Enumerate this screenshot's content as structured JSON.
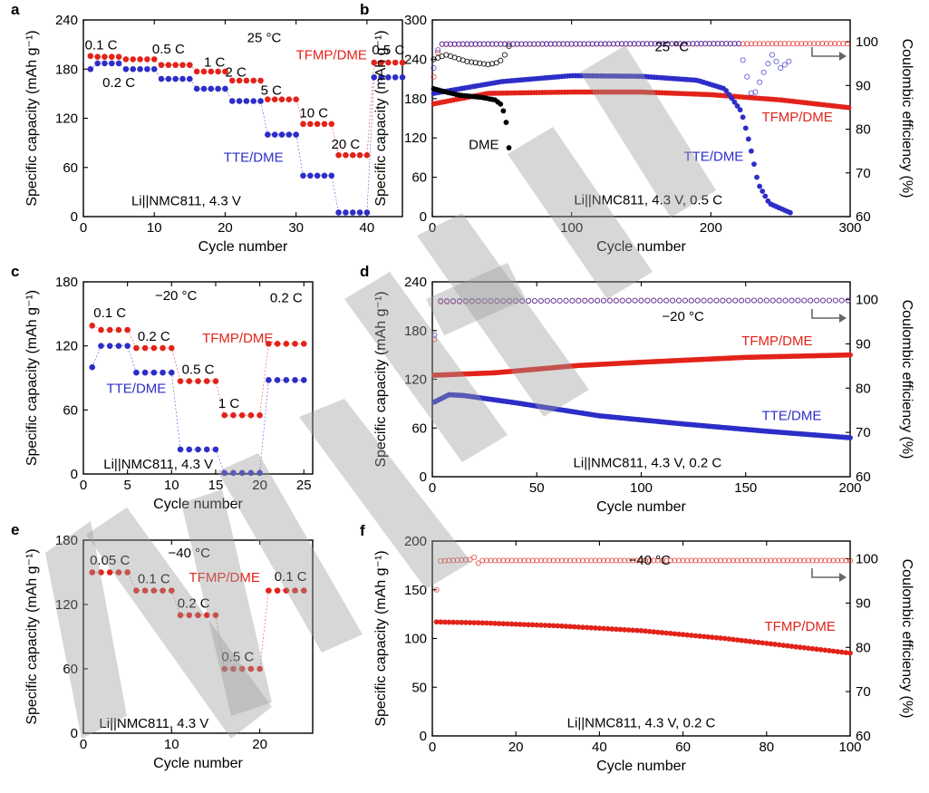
{
  "panels": [
    {
      "id": "a",
      "label": "a",
      "type": "rate",
      "xlabel": "Cycle number",
      "ylabel": "Specific capacity (mAh g⁻¹)",
      "xlim": [
        0,
        45
      ],
      "xticks": [
        0,
        10,
        20,
        30,
        40
      ],
      "ylim": [
        0,
        240
      ],
      "yticks": [
        0,
        60,
        120,
        180,
        240
      ],
      "series": [
        {
          "name": "TFMP/DME",
          "color": "#e2231a",
          "rates": [
            [
              1,
              5,
              195
            ],
            [
              6,
              10,
              192
            ],
            [
              11,
              15,
              185
            ],
            [
              16,
              20,
              177
            ],
            [
              21,
              25,
              166
            ],
            [
              26,
              30,
              143
            ],
            [
              31,
              35,
              113
            ],
            [
              36,
              40,
              75
            ],
            [
              41,
              45,
              188
            ]
          ],
          "first": 196
        },
        {
          "name": "TTE/DME",
          "color": "#2d2dc8",
          "rates": [
            [
              1,
              5,
              187
            ],
            [
              6,
              10,
              180
            ],
            [
              11,
              15,
              168
            ],
            [
              16,
              20,
              156
            ],
            [
              21,
              25,
              141
            ],
            [
              26,
              30,
              100
            ],
            [
              31,
              35,
              50
            ],
            [
              36,
              40,
              5
            ],
            [
              41,
              45,
              170
            ]
          ],
          "first": 180
        }
      ],
      "labels": [
        {
          "text": "0.1 C",
          "x": 2.5,
          "y": 204
        },
        {
          "text": "0.5 C",
          "x": 12,
          "y": 199
        },
        {
          "text": "25 °C",
          "x": 25.5,
          "y": 213,
          "color": "#000000"
        },
        {
          "text": "TFMP/DME",
          "x": 35,
          "y": 192,
          "color": "#e2231a"
        },
        {
          "text": "0.2 C",
          "x": 5,
          "y": 158
        },
        {
          "text": "1 C",
          "x": 18.5,
          "y": 183
        },
        {
          "text": "2 C",
          "x": 21.5,
          "y": 171
        },
        {
          "text": "5 C",
          "x": 26.5,
          "y": 149
        },
        {
          "text": "10 C",
          "x": 32.5,
          "y": 121
        },
        {
          "text": "20 C",
          "x": 37,
          "y": 83
        },
        {
          "text": "0.5 C",
          "x": 43,
          "y": 198
        },
        {
          "text": "TTE/DME",
          "x": 24,
          "y": 67,
          "color": "#2d2dc8"
        },
        {
          "text": "Li||NMC811, 4.3 V",
          "x": 14.5,
          "y": 14,
          "color": "#000000"
        }
      ]
    },
    {
      "id": "b",
      "label": "b",
      "type": "cycling",
      "xlabel": "Cycle number",
      "ylabel": "Specific capacity (mAh g⁻¹)",
      "y2label": "Coulombic efficiency (%)",
      "xlim": [
        0,
        300
      ],
      "xticks": [
        0,
        100,
        200,
        300
      ],
      "ylim": [
        0,
        300
      ],
      "yticks": [
        0,
        60,
        120,
        180,
        240,
        300
      ],
      "y2lim": [
        60,
        105
      ],
      "y2ticks": [
        60,
        70,
        80,
        90,
        100
      ],
      "series": [
        {
          "name": "TFMP/DME",
          "color": "#e2231a",
          "x_end": 300,
          "capacity": [
            [
              1,
              172
            ],
            [
              40,
              188
            ],
            [
              100,
              190
            ],
            [
              150,
              190
            ],
            [
              200,
              186
            ],
            [
              250,
              178
            ],
            [
              300,
              166
            ]
          ],
          "ce": [
            [
              1,
              92
            ],
            [
              5,
              99.4
            ],
            [
              300,
              99.6
            ]
          ]
        },
        {
          "name": "TTE/DME",
          "color": "#2d2dc8",
          "x_end": 258,
          "capacity": [
            [
              1,
              188
            ],
            [
              50,
              206
            ],
            [
              100,
              215
            ],
            [
              150,
              214
            ],
            [
              190,
              208
            ],
            [
              210,
              195
            ],
            [
              222,
              160
            ],
            [
              228,
              110
            ],
            [
              234,
              50
            ],
            [
              242,
              20
            ],
            [
              258,
              5
            ]
          ],
          "ce": [
            [
              1,
              94
            ],
            [
              5,
              99.5
            ],
            [
              220,
              99.6
            ],
            [
              226,
              92
            ],
            [
              230,
              87
            ],
            [
              238,
              93
            ],
            [
              244,
              97
            ],
            [
              250,
              94
            ],
            [
              258,
              96
            ]
          ]
        },
        {
          "name": "DME",
          "color": "#000000",
          "x_end": 56,
          "capacity": [
            [
              1,
              195
            ],
            [
              10,
              190
            ],
            [
              20,
              185
            ],
            [
              35,
              182
            ],
            [
              45,
              178
            ],
            [
              50,
              170
            ],
            [
              54,
              135
            ],
            [
              56,
              75
            ]
          ],
          "ce": [
            [
              1,
              96
            ],
            [
              10,
              97
            ],
            [
              25,
              95.5
            ],
            [
              40,
              94.8
            ],
            [
              48,
              95.3
            ],
            [
              52,
              97
            ],
            [
              55,
              99
            ],
            [
              56,
              62
            ]
          ]
        }
      ],
      "labels": [
        {
          "text": "25 °C",
          "x": 172,
          "y": 252,
          "color": "#000000"
        },
        {
          "text": "TFMP/DME",
          "x": 262,
          "y": 145,
          "color": "#e2231a"
        },
        {
          "text": "DME",
          "x": 37,
          "y": 103,
          "color": "#000000"
        },
        {
          "text": "TTE/DME",
          "x": 202,
          "y": 85,
          "color": "#2d2dc8"
        },
        {
          "text": "Li||NMC811, 4.3 V, 0.5 C",
          "x": 155,
          "y": 19,
          "color": "#000000"
        }
      ]
    },
    {
      "id": "c",
      "label": "c",
      "type": "rate",
      "xlabel": "Cycle number",
      "ylabel": "Specific capacity (mAh g⁻¹)",
      "xlim": [
        0,
        26
      ],
      "xticks": [
        0,
        5,
        10,
        15,
        20,
        25
      ],
      "ylim": [
        0,
        180
      ],
      "yticks": [
        0,
        60,
        120,
        180
      ],
      "series": [
        {
          "name": "TFMP/DME",
          "color": "#e2231a",
          "rates": [
            [
              1,
              5,
              135
            ],
            [
              6,
              10,
              118
            ],
            [
              11,
              15,
              87
            ],
            [
              16,
              20,
              55
            ],
            [
              21,
              25,
              122
            ]
          ],
          "first": 139
        },
        {
          "name": "TTE/DME",
          "color": "#2d2dc8",
          "rates": [
            [
              1,
              5,
              120
            ],
            [
              6,
              10,
              95
            ],
            [
              11,
              15,
              23
            ],
            [
              16,
              20,
              1
            ],
            [
              21,
              25,
              88
            ]
          ],
          "first": 100
        }
      ],
      "labels": [
        {
          "text": "0.1 C",
          "x": 3,
          "y": 147
        },
        {
          "text": "−20 °C",
          "x": 10.5,
          "y": 163,
          "color": "#000000"
        },
        {
          "text": "0.2 C",
          "x": 23,
          "y": 161
        },
        {
          "text": "0.2 C",
          "x": 8,
          "y": 125
        },
        {
          "text": "TFMP/DME",
          "x": 17.5,
          "y": 123,
          "color": "#e2231a"
        },
        {
          "text": "TTE/DME",
          "x": 6,
          "y": 76,
          "color": "#2d2dc8"
        },
        {
          "text": "0.5 C",
          "x": 13,
          "y": 94
        },
        {
          "text": "1 C",
          "x": 16.5,
          "y": 62
        },
        {
          "text": "Li||NMC811, 4.3 V",
          "x": 8.5,
          "y": 5,
          "color": "#000000"
        }
      ]
    },
    {
      "id": "d",
      "label": "d",
      "type": "cycling",
      "xlabel": "Cycle number",
      "ylabel": "Specific capacity (mAh g⁻¹)",
      "y2label": "Coulombic efficiency (%)",
      "xlim": [
        0,
        200
      ],
      "xticks": [
        0,
        50,
        100,
        150,
        200
      ],
      "ylim": [
        0,
        240
      ],
      "yticks": [
        0,
        60,
        120,
        180,
        240
      ],
      "y2lim": [
        60,
        104
      ],
      "y2ticks": [
        60,
        70,
        80,
        90,
        100
      ],
      "series": [
        {
          "name": "TFMP/DME",
          "color": "#e2231a",
          "x_end": 200,
          "capacity": [
            [
              1,
              125
            ],
            [
              30,
              128
            ],
            [
              70,
              137
            ],
            [
              100,
              141
            ],
            [
              150,
              147
            ],
            [
              200,
              150
            ]
          ],
          "ce": [
            [
              1,
              91
            ],
            [
              4,
              99.5
            ],
            [
              80,
              99.8
            ],
            [
              200,
              99.8
            ]
          ]
        },
        {
          "name": "TTE/DME",
          "color": "#2d2dc8",
          "x_end": 200,
          "capacity": [
            [
              1,
              92
            ],
            [
              8,
              101
            ],
            [
              15,
              100
            ],
            [
              40,
              91
            ],
            [
              80,
              75
            ],
            [
              120,
              65
            ],
            [
              160,
              56
            ],
            [
              200,
              48
            ]
          ],
          "ce": [
            [
              1,
              92
            ],
            [
              4,
              99.7
            ],
            [
              200,
              99.8
            ]
          ]
        }
      ],
      "labels": [
        {
          "text": "−20 °C",
          "x": 120,
          "y": 192,
          "color": "#000000"
        },
        {
          "text": "TFMP/DME",
          "x": 165,
          "y": 162,
          "color": "#e2231a"
        },
        {
          "text": "TTE/DME",
          "x": 172,
          "y": 70,
          "color": "#2d2dc8"
        },
        {
          "text": "Li||NMC811, 4.3 V, 0.2 C",
          "x": 103,
          "y": 12,
          "color": "#000000"
        }
      ]
    },
    {
      "id": "e",
      "label": "e",
      "type": "rate",
      "xlabel": "Cycle number",
      "ylabel": "Specific capacity (mAh g⁻¹)",
      "xlim": [
        0,
        26
      ],
      "xticks": [
        0,
        10,
        20
      ],
      "ylim": [
        0,
        180
      ],
      "yticks": [
        0,
        60,
        120,
        180
      ],
      "series": [
        {
          "name": "TFMP/DME",
          "color": "#e2231a",
          "rates": [
            [
              1,
              5,
              150
            ],
            [
              6,
              10,
              133
            ],
            [
              11,
              15,
              110
            ],
            [
              16,
              20,
              60
            ],
            [
              21,
              25,
              133
            ]
          ]
        }
      ],
      "labels": [
        {
          "text": "0.05 C",
          "x": 3,
          "y": 157
        },
        {
          "text": "−40 °C",
          "x": 12,
          "y": 164,
          "color": "#000000"
        },
        {
          "text": "0.1 C",
          "x": 8,
          "y": 140
        },
        {
          "text": "TFMP/DME",
          "x": 16,
          "y": 141,
          "color": "#e2231a"
        },
        {
          "text": "0.1 C",
          "x": 23.5,
          "y": 142
        },
        {
          "text": "0.2 C",
          "x": 12.5,
          "y": 117
        },
        {
          "text": "0.5 C",
          "x": 17.5,
          "y": 67
        },
        {
          "text": "Li||NMC811, 4.3 V",
          "x": 8,
          "y": 5,
          "color": "#000000"
        }
      ]
    },
    {
      "id": "f",
      "label": "f",
      "type": "cycling",
      "xlabel": "Cycle number",
      "ylabel": "Specific capacity (mAh g⁻¹)",
      "y2label": "Coulombic efficiency (%)",
      "xlim": [
        0,
        100
      ],
      "xticks": [
        0,
        20,
        40,
        60,
        80,
        100
      ],
      "ylim": [
        0,
        200
      ],
      "yticks": [
        0,
        50,
        100,
        150,
        200
      ],
      "y2lim": [
        60,
        104
      ],
      "y2ticks": [
        60,
        70,
        80,
        90,
        100
      ],
      "series": [
        {
          "name": "TFMP/DME",
          "color": "#e2231a",
          "x_end": 100,
          "capacity": [
            [
              1,
              117
            ],
            [
              12,
              116
            ],
            [
              30,
              113
            ],
            [
              50,
              108
            ],
            [
              70,
              100
            ],
            [
              100,
              85
            ]
          ],
          "ce": [
            [
              1,
              93
            ],
            [
              2,
              99.5
            ],
            [
              9,
              99.8
            ],
            [
              10,
              100.3
            ],
            [
              11,
              99
            ],
            [
              12,
              99.6
            ],
            [
              100,
              99.6
            ]
          ]
        }
      ],
      "labels": [
        {
          "text": "−40 °C",
          "x": 52,
          "y": 176,
          "color": "#000000"
        },
        {
          "text": "TFMP/DME",
          "x": 88,
          "y": 108,
          "color": "#e2231a"
        },
        {
          "text": "Li||NMC811, 4.3 V, 0.2 C",
          "x": 50,
          "y": 9,
          "color": "#000000"
        }
      ]
    }
  ]
}
